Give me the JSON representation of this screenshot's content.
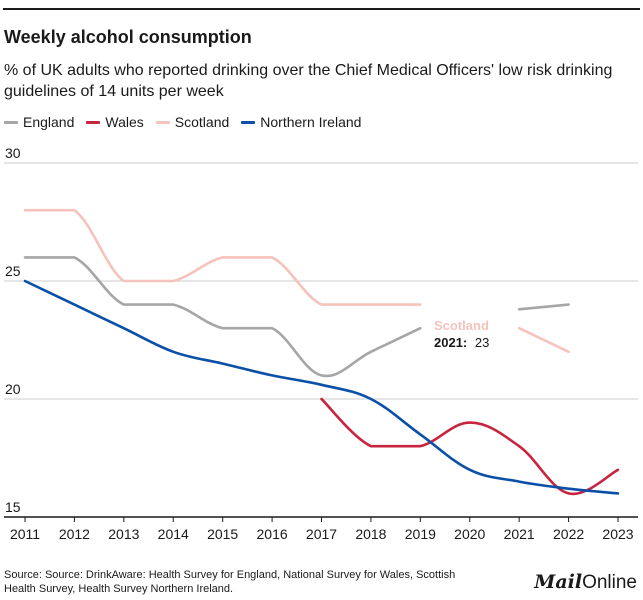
{
  "title": "Weekly alcohol consumption",
  "subtitle": "% of UK adults who reported drinking over the Chief Medical Officers' low risk drinking guidelines of 14 units per week",
  "source": "Source: Source: DrinkAware: Health Survey for England, National Survey for Wales, Scottish Health Survey, Health Survey Northern Ireland.",
  "brand": {
    "mail": "Mail",
    "online": "Online"
  },
  "colors": {
    "England": "#a6a6a6",
    "Wales": "#c8243f",
    "Scotland": "#f6c2bc",
    "Northern Ireland": "#0a4fa8",
    "grid": "#cccccc",
    "axis": "#1a1a1a"
  },
  "annotation": {
    "series": "Scotland",
    "label": "2021:",
    "value": "23"
  },
  "chart_data": {
    "type": "line",
    "title": "Weekly alcohol consumption",
    "xlabel": "",
    "ylabel": "",
    "ylim": [
      15,
      30
    ],
    "yticks": [
      15,
      20,
      25,
      30
    ],
    "x": [
      2011,
      2012,
      2013,
      2014,
      2015,
      2016,
      2017,
      2018,
      2019,
      2020,
      2021,
      2022,
      2023
    ],
    "grid": true,
    "legend_position": "top-left",
    "series": [
      {
        "name": "England",
        "values": [
          26,
          26,
          24,
          24,
          23,
          23,
          21,
          22,
          23,
          null,
          23.8,
          24,
          null
        ]
      },
      {
        "name": "Wales",
        "values": [
          null,
          null,
          null,
          null,
          null,
          null,
          20,
          18,
          18,
          19,
          18,
          16,
          17
        ]
      },
      {
        "name": "Scotland",
        "values": [
          28,
          28,
          25,
          25,
          26,
          26,
          24,
          24,
          24,
          null,
          23,
          22,
          null
        ]
      },
      {
        "name": "Northern Ireland",
        "values": [
          25,
          24,
          23,
          22,
          21.5,
          21,
          20.6,
          20,
          18.5,
          17,
          16.5,
          16.2,
          16
        ]
      }
    ]
  }
}
